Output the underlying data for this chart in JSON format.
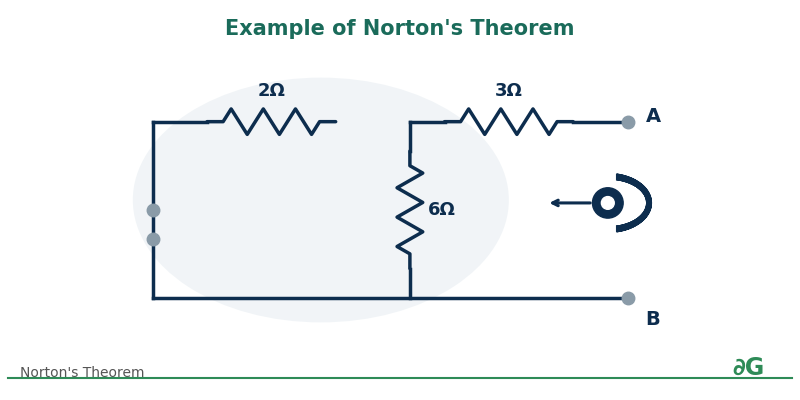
{
  "title": "Example of Norton's Theorem",
  "title_color": "#1a6b5a",
  "title_fontsize": 15,
  "bg_color": "#ffffff",
  "circuit_color": "#0d2d4e",
  "circuit_lw": 2.5,
  "resistor_color": "#0d2d4e",
  "node_color": "#8a9ba8",
  "label_color": "#0d2d4e",
  "label_fontsize": 13,
  "footer_text": "Norton's Theorem",
  "footer_color": "#555555",
  "footer_fontsize": 10,
  "logo_color": "#2e8b57",
  "accent_color": "#2e8b57",
  "node_A_label": "A",
  "node_B_label": "B",
  "res1_label": "2Ω",
  "res2_label": "3Ω",
  "res3_label": "6Ω"
}
